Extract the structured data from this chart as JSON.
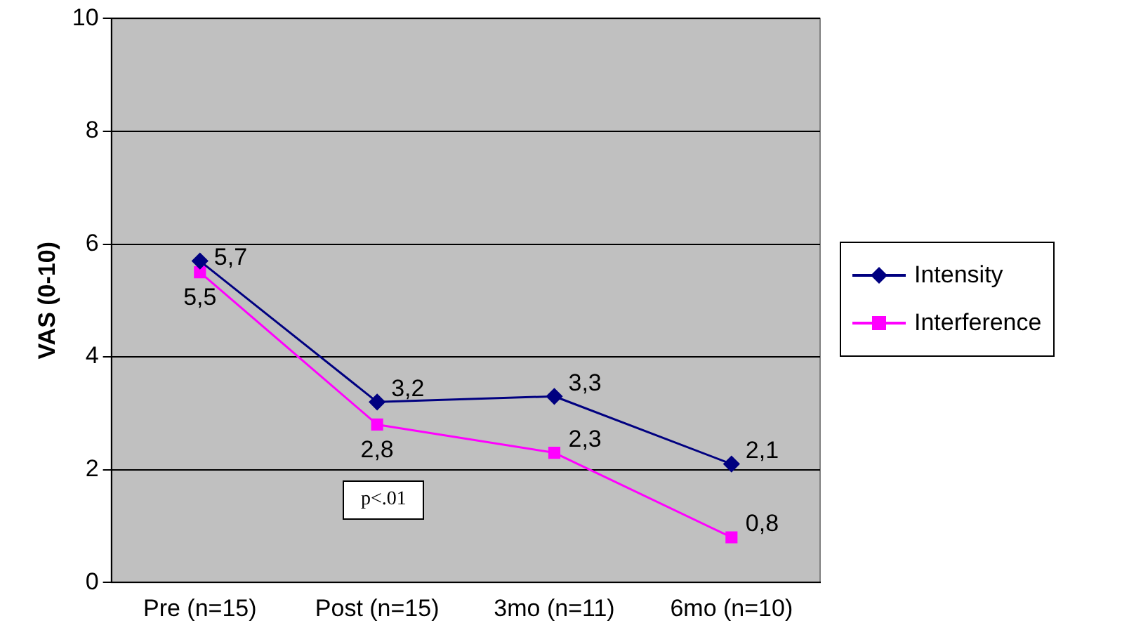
{
  "chart_data": {
    "type": "line",
    "ylabel": "VAS (0-10)",
    "categories": [
      "Pre (n=15)",
      "Post (n=15)",
      "3mo (n=11)",
      "6mo (n=10)"
    ],
    "series": [
      {
        "name": "Intensity",
        "color": "#000080",
        "marker": "diamond",
        "values": [
          5.7,
          3.2,
          3.3,
          2.1
        ],
        "value_labels": [
          "5,7",
          "3,2",
          "3,3",
          "2,1"
        ]
      },
      {
        "name": "Interference",
        "color": "#ff00ff",
        "marker": "square",
        "values": [
          5.5,
          2.8,
          2.3,
          0.8
        ],
        "value_labels": [
          "5,5",
          "2,8",
          "2,3",
          "0,8"
        ]
      }
    ],
    "ylim": [
      0,
      10
    ],
    "yticks": [
      0,
      2,
      4,
      6,
      8,
      10
    ],
    "grid": "y",
    "legend": "right",
    "line_style": "solid",
    "annotations": [
      "p<.01"
    ]
  }
}
